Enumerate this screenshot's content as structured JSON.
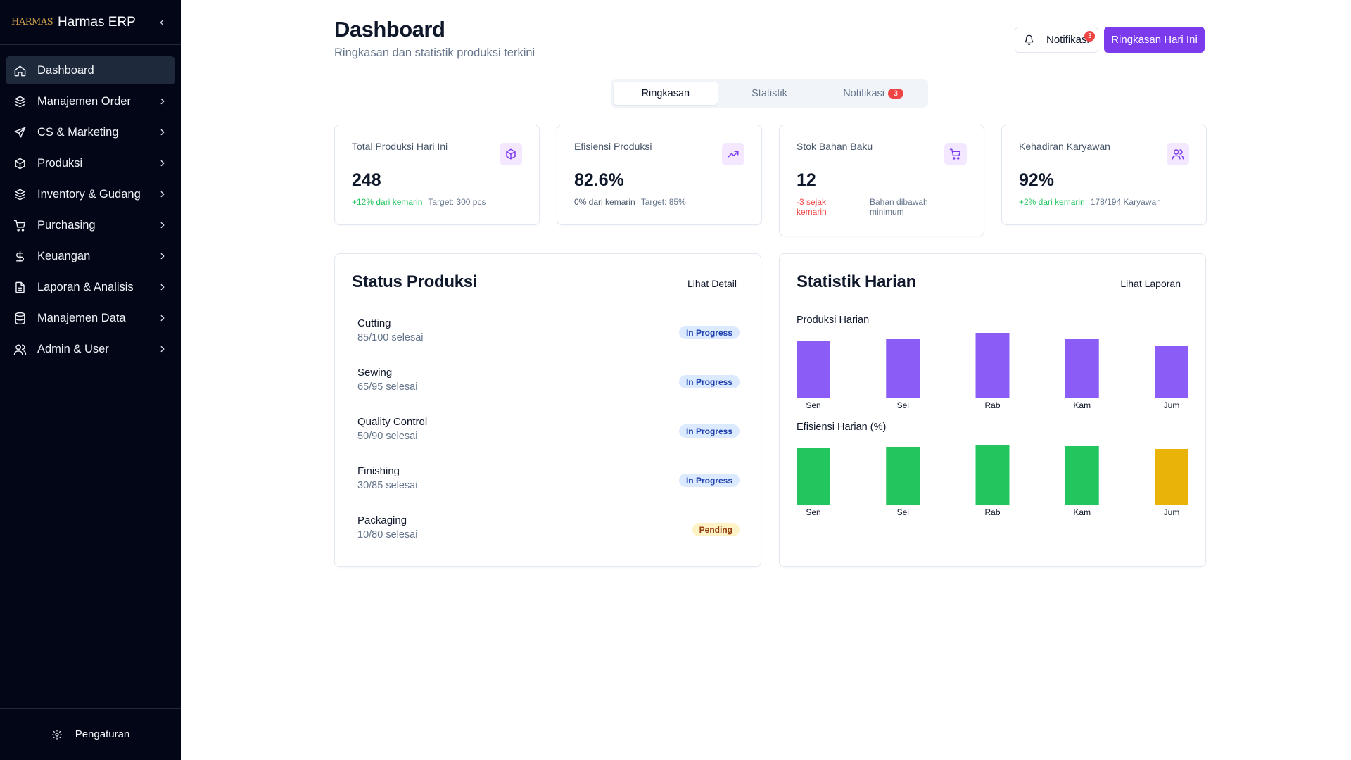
{
  "sidebar": {
    "logo_text": "HARMAS",
    "brand": "Harmas ERP",
    "items": [
      {
        "label": "Dashboard"
      },
      {
        "label": "Manajemen Order"
      },
      {
        "label": "CS & Marketing"
      },
      {
        "label": "Produksi"
      },
      {
        "label": "Inventory & Gudang"
      },
      {
        "label": "Purchasing"
      },
      {
        "label": "Keuangan"
      },
      {
        "label": "Laporan & Analisis"
      },
      {
        "label": "Manajemen Data"
      },
      {
        "label": "Admin & User"
      }
    ],
    "footer_label": "Pengaturan"
  },
  "header": {
    "title": "Dashboard",
    "subtitle": "Ringkasan dan statistik produksi terkini",
    "notif_label": "Notifikasi",
    "notif_count": "3",
    "primary_label": "Ringkasan Hari Ini"
  },
  "tabs": [
    {
      "label": "Ringkasan"
    },
    {
      "label": "Statistik"
    },
    {
      "label": "Notifikasi",
      "badge": "3"
    }
  ],
  "kpis": [
    {
      "label": "Total Produksi Hari Ini",
      "value": "248",
      "change": "+12% dari kemarin",
      "note": "Target: 300 pcs",
      "icon": "package-icon"
    },
    {
      "label": "Efisiensi Produksi",
      "value": "82.6%",
      "change": "0% dari kemarin",
      "note": "Target: 85%",
      "icon": "trending-up-icon"
    },
    {
      "label": "Stok Bahan Baku",
      "value": "12",
      "change": "-3 sejak kemarin",
      "note": "Bahan dibawah minimum",
      "icon": "cart-icon"
    },
    {
      "label": "Kehadiran Karyawan",
      "value": "92%",
      "change": "+2% dari kemarin",
      "note": "178/194 Karyawan",
      "icon": "users-icon"
    }
  ],
  "status_panel": {
    "title": "Status Produksi",
    "link": "Lihat Detail",
    "stages": [
      {
        "name": "Cutting",
        "progress": "85/100 selesai",
        "status": "In Progress"
      },
      {
        "name": "Sewing",
        "progress": "65/95 selesai",
        "status": "In Progress"
      },
      {
        "name": "Quality Control",
        "progress": "50/90 selesai",
        "status": "In Progress"
      },
      {
        "name": "Finishing",
        "progress": "30/85 selesai",
        "status": "In Progress"
      },
      {
        "name": "Packaging",
        "progress": "10/80 selesai",
        "status": "Pending"
      }
    ]
  },
  "stats_panel": {
    "title": "Statistik Harian",
    "link": "Lihat Laporan"
  },
  "chart_data": [
    {
      "type": "bar",
      "title": "Produksi Harian",
      "categories": [
        "Sen",
        "Sel",
        "Rab",
        "Kam",
        "Jum"
      ],
      "values": [
        80,
        83,
        92,
        83,
        73
      ],
      "ylim": [
        0,
        100
      ],
      "color": "#8b5cf6"
    },
    {
      "type": "bar",
      "title": "Efisiensi Harian (%)",
      "categories": [
        "Sen",
        "Sel",
        "Rab",
        "Kam",
        "Jum"
      ],
      "values": [
        80,
        82,
        85,
        83,
        79
      ],
      "ylim": [
        0,
        100
      ],
      "colors": [
        "#22c55e",
        "#22c55e",
        "#22c55e",
        "#22c55e",
        "#eab308"
      ]
    }
  ]
}
